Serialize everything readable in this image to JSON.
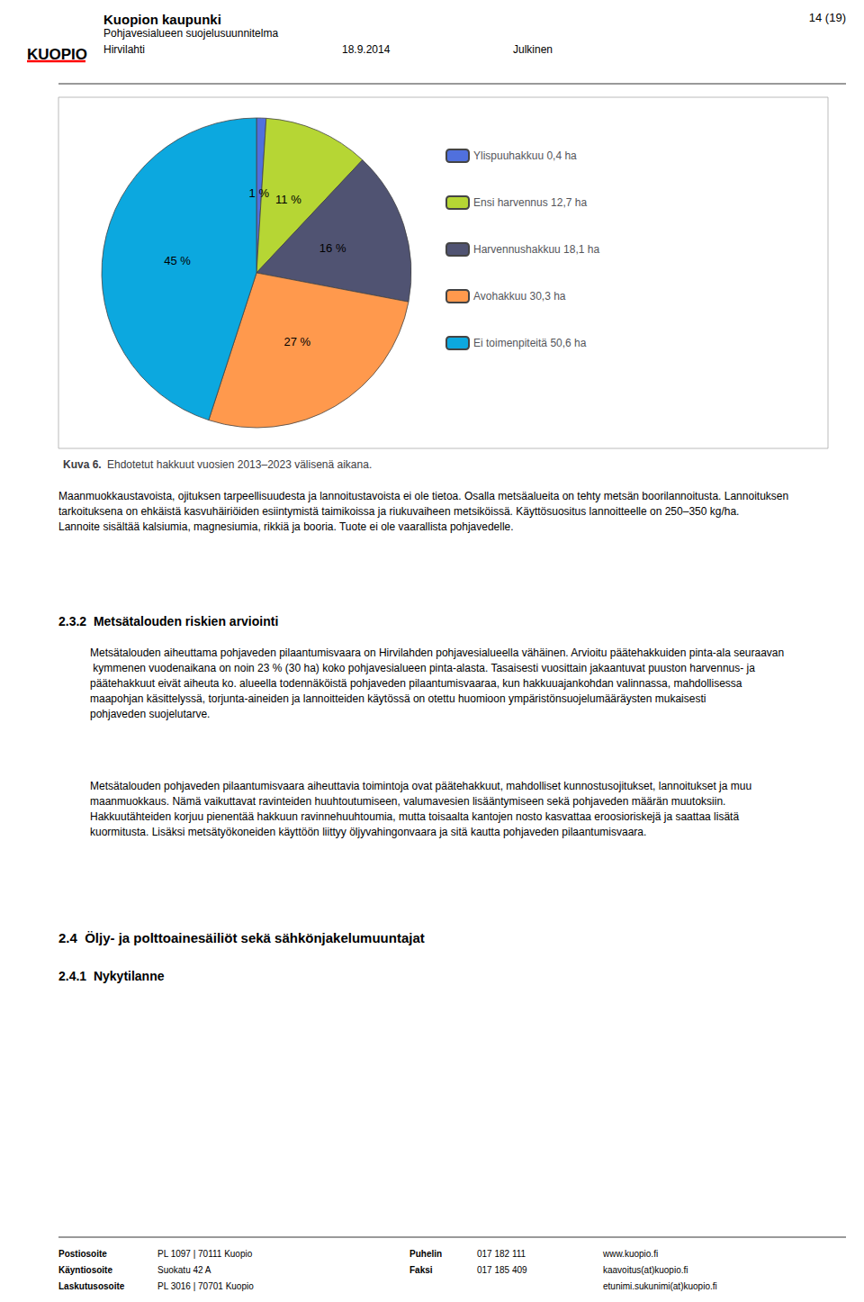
{
  "chart_data": {
    "type": "pie",
    "title": "Kuva 6.",
    "subtitle": "Ehdotetut hakkuut vuosien 2013–2023 välisenä aikana.",
    "categories": [
      "Ylispuuhakkuu 0,4 ha",
      "Ensi harvennus 12,7 ha",
      "Harvennushakkuu 18,1 ha",
      "Avohakkuu 30,3 ha",
      "Ei toimenpiteitä 50,6 ha"
    ],
    "values": [
      1,
      11,
      16,
      27,
      45
    ],
    "value_labels": [
      "1 %",
      "11 %",
      "16 %",
      "27 %",
      "45 %"
    ],
    "data_labels": true,
    "legend": "right",
    "annotations": [
      "KUOPIO",
      "Kuopion kaupunki",
      "Pohjavesialueen suojelusuunnitelma",
      "Hirvilahti",
      "18.9.2014",
      "Julkinen",
      "14 (19)",
      "Maanmuokkaustavoista, ojituksen tarpeellisuudesta ja lannoitustavoista ei ole tietoa. Osalla metsäalueita on tehty metsän boorilannoitusta. Lannoituksen tarkoituksena on ehkäistä kasvuhäiriöiden esiintymistä taimikoissa ja riukuvaiheen metsiköissä. Käyttösuositus lannoitteelle on 250–350 kg/ha. Lannoite sisältää kalsiumia, magnesiumia, rikkiä ja booria. Tuote ei ole vaarallista pohjavedelle.",
      "2.3.2  Metsätalouden riskien arviointi",
      "Metsätalouden aiheuttama pohjaveden pilaantumisvaara on Hirvilahden pohjavesialueella vähäinen. Arvioitu päätehakkuiden pinta-ala seuraavan kymmenen vuodenaikana on noin 23 % (30 ha) koko pohjavesialueen pinta-alasta. Tasaisesti vuosittain jakaantuvat puuston harvennus- ja päätehakkuut eivät aiheuta ko. alueella todennäköistä pohjaveden pilaantumisvaaraa, kun hakkuuajankohdan valinnassa, mahdollisessa maapohjan käsittelyssä, torjunta-aineiden ja lannoitteiden käytössä on otettu huomioon ympäristönsuojelumääräysten mukaisesti pohjaveden suojelutarve.",
      "Metsätalouden pohjaveden pilaantumisvaara aiheuttavia toimintoja ovat päätehakkuut, mahdolliset kunnostusojitukset, lannoitukset ja muu maanmuokkaus. Nämä vaikuttavat ravinteiden huuhtoutumiseen, valumavesien lisääntymiseen sekä pohjaveden määrän muutoksiin. Hakkuutähteiden korjuu pienentää hakkuun ravinnehuuhtoumia, mutta toisaalta kantojen nosto kasvattaa eroosioriskejä ja saattaa lisätä kuormitusta. Lisäksi metsätyökoneiden käyttöön liittyy öljyvahingonvaara ja sitä kautta pohjaveden pilaantumisvaara.",
      "2.4  Öljy- ja polttoainesäiliöt sekä sähkönjakelumuuntajat",
      "2.4.1  Nykytilanne",
      "Postiosoite",
      "PL 1097 | 70111 Kuopio",
      "Käyntiosoite",
      "Suokatu 42 A",
      "Laskutusosoite",
      "PL 3016 | 70701 Kuopio",
      "Puhelin",
      "017 182 111",
      "Faksi",
      "017 185 409",
      "www.kuopio.fi",
      "kaavoitus(at)kuopio.fi",
      "etunimi.sukunimi(at)kuopio.fi"
    ]
  }
}
